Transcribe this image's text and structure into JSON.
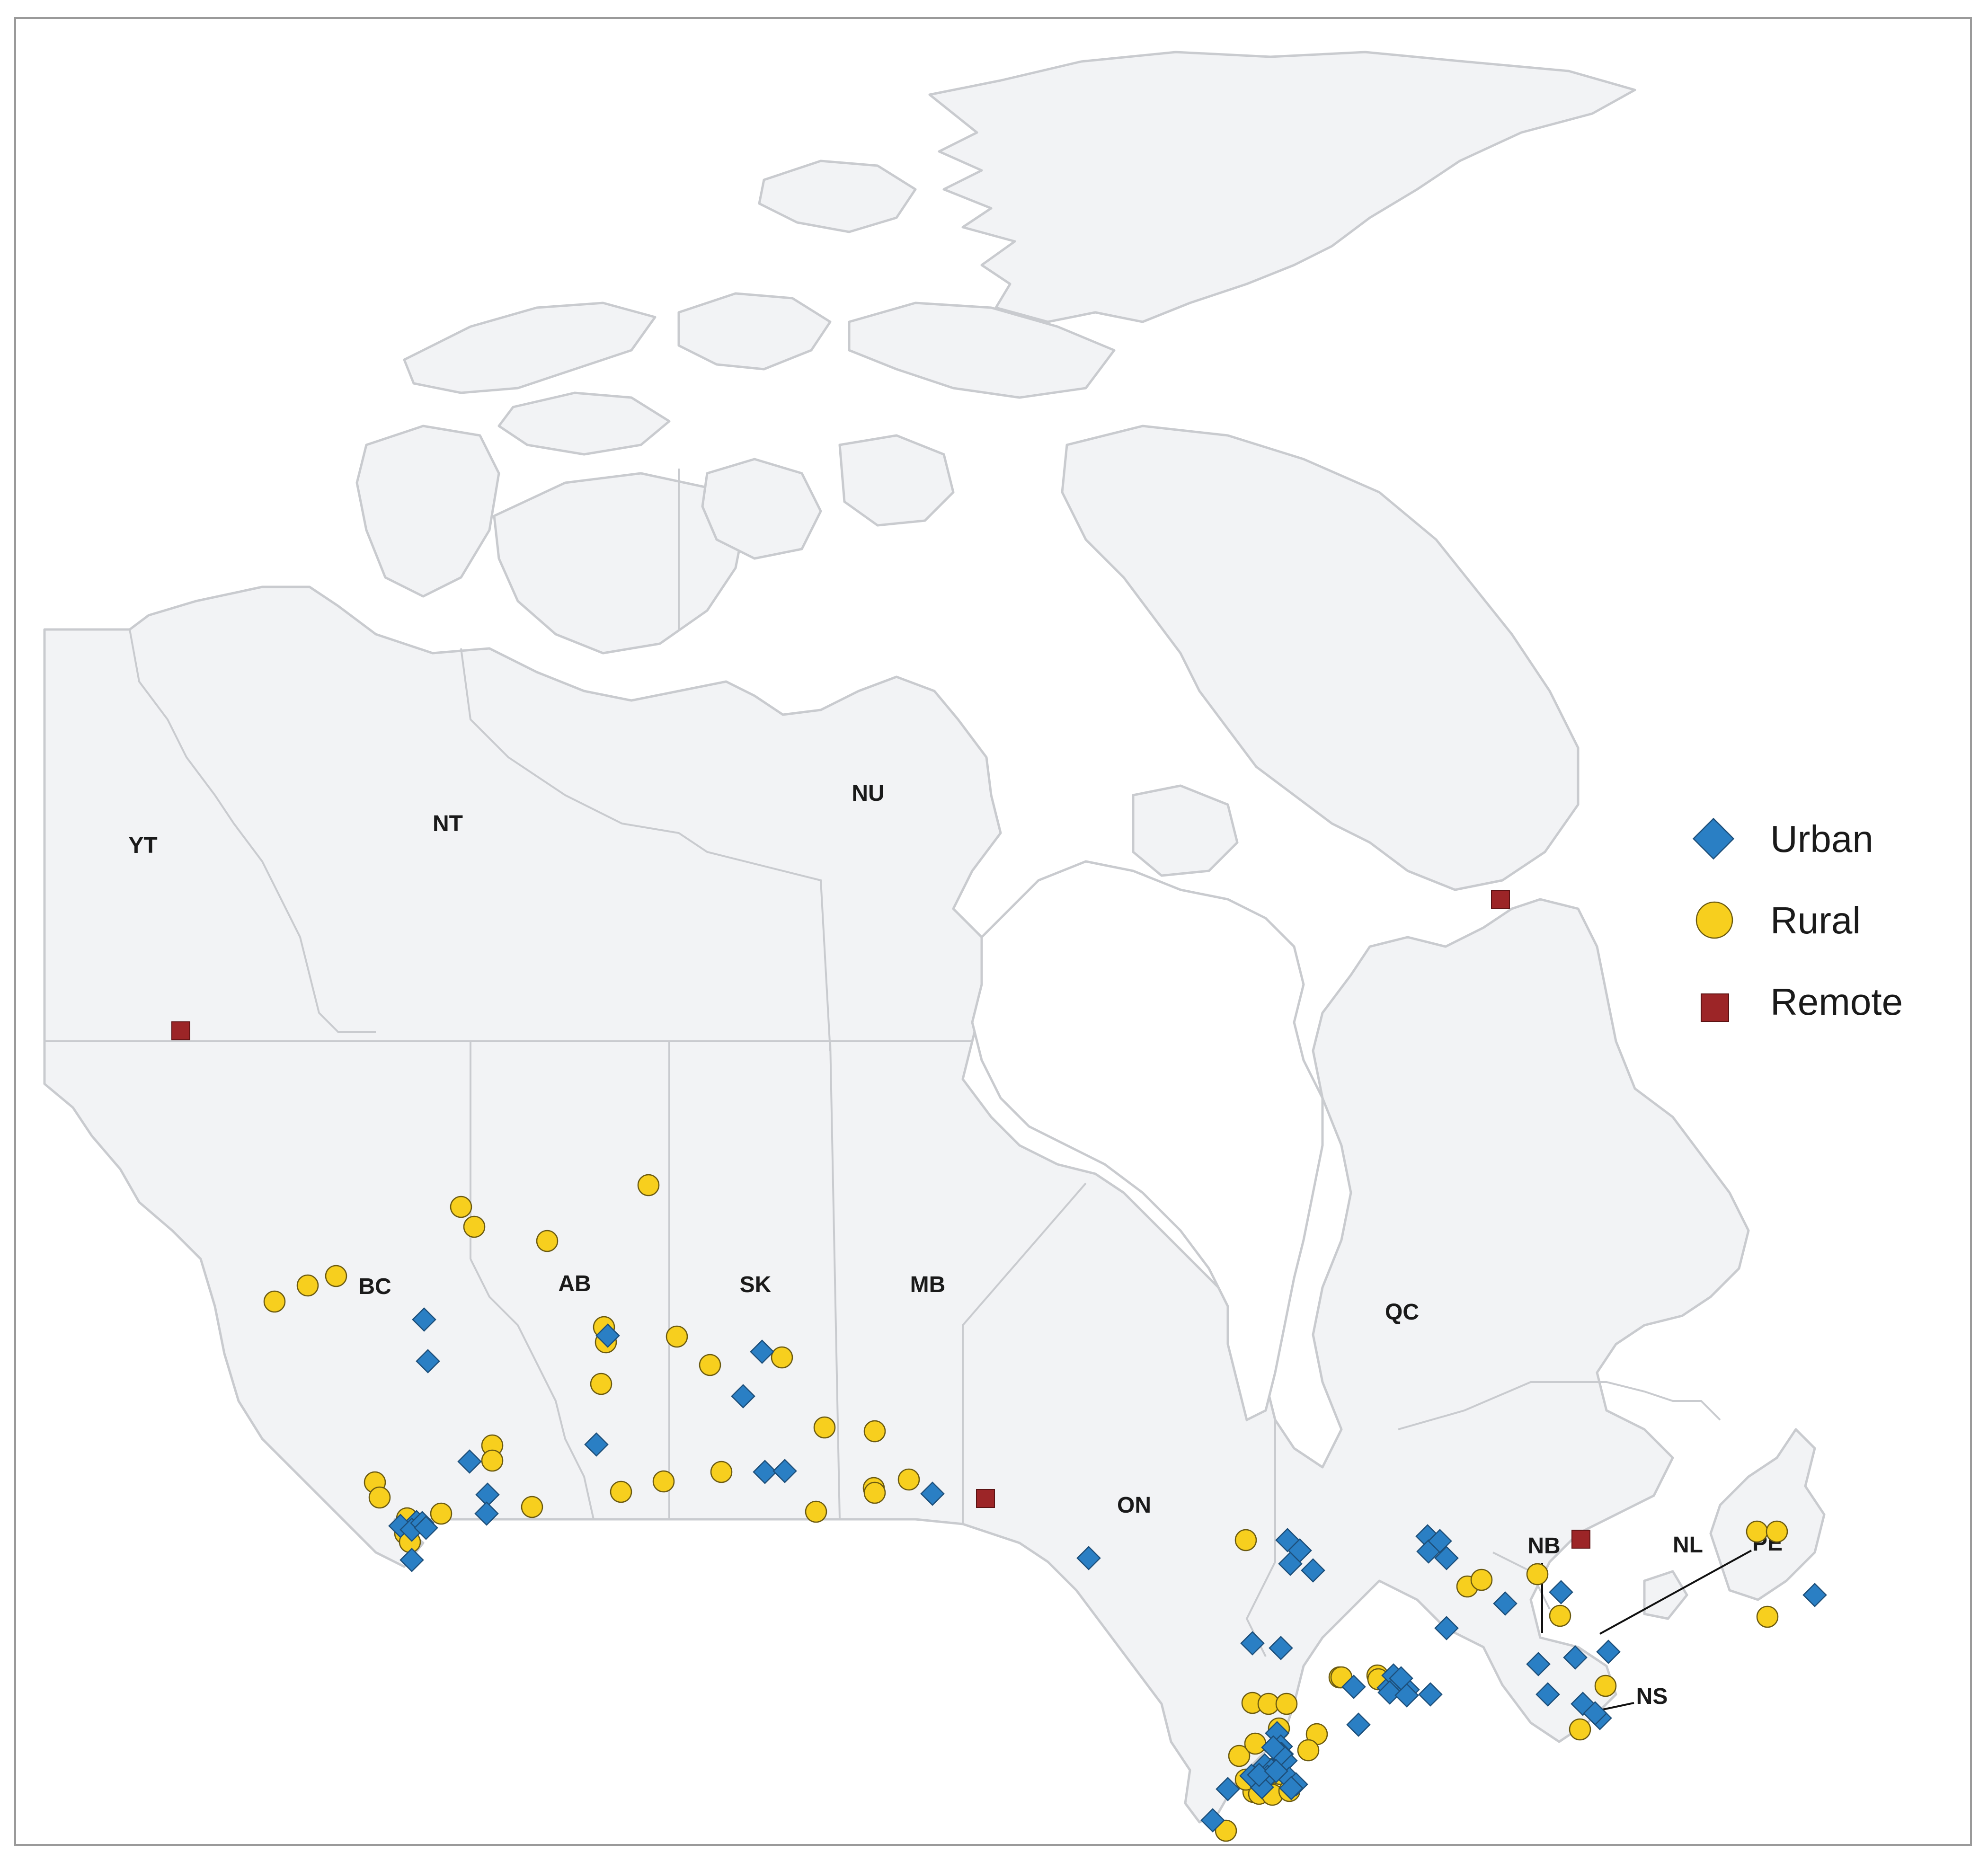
{
  "legend": {
    "urban": "Urban",
    "rural": "Rural",
    "remote": "Remote"
  },
  "provinces": [
    {
      "code": "YT"
    },
    {
      "code": "NT"
    },
    {
      "code": "NU"
    },
    {
      "code": "BC"
    },
    {
      "code": "AB"
    },
    {
      "code": "SK"
    },
    {
      "code": "MB"
    },
    {
      "code": "ON"
    },
    {
      "code": "QC"
    },
    {
      "code": "NB"
    },
    {
      "code": "NL"
    },
    {
      "code": "PE"
    },
    {
      "code": "NS"
    }
  ],
  "colors": {
    "urban": "#2a7fc4",
    "rural": "#f7cf1e",
    "remote": "#9c2527",
    "land": "#f2f3f5",
    "border": "#c9cbcf"
  },
  "marker_counts": {
    "urban": 70,
    "rural": 62,
    "remote": 4
  }
}
